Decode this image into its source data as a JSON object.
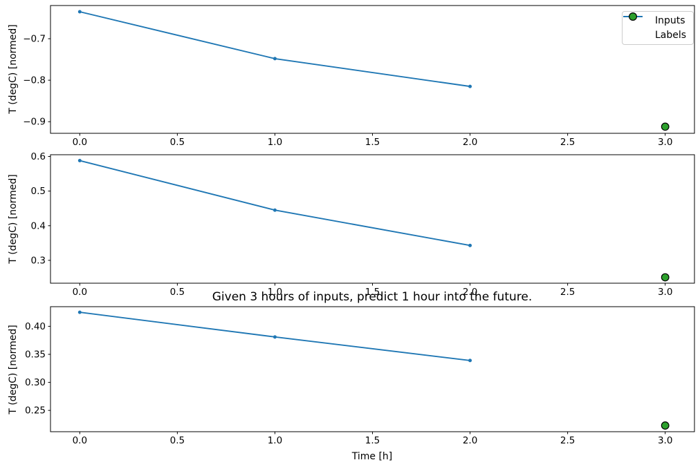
{
  "figure": {
    "title": "Given 3 hours of inputs, predict 1 hour into the future.",
    "xlabel": "Time [h]",
    "ylabel": "T (degC) [normed]",
    "background": "#ffffff"
  },
  "legend": {
    "position": "upper-right-of-first-subplot",
    "items": [
      {
        "label": "Inputs",
        "marker": "line-with-dot",
        "color": "#1f77b4"
      },
      {
        "label": "Labels",
        "marker": "circle",
        "fill": "#2ca02c",
        "edge": "#000000"
      }
    ]
  },
  "colors": {
    "inputs_line": "#1f77b4",
    "labels_fill": "#2ca02c",
    "labels_edge": "#000000",
    "spine": "#000000",
    "tick_text": "#000000"
  },
  "chart_data": [
    {
      "type": "line",
      "title": "",
      "ylabel": "T (degC) [normed]",
      "legend_entries": [
        "Inputs",
        "Labels"
      ],
      "series": [
        {
          "name": "Inputs",
          "x": [
            0,
            1,
            2
          ],
          "y": [
            -0.635,
            -0.748,
            -0.815
          ]
        }
      ],
      "scatter": [
        {
          "name": "Labels",
          "x": [
            3
          ],
          "y": [
            -0.912
          ]
        }
      ],
      "xlim": [
        -0.15,
        3.15
      ],
      "ylim": [
        -0.928,
        -0.62
      ],
      "xticks": {
        "values": [
          0,
          0.5,
          1,
          1.5,
          2,
          2.5,
          3
        ],
        "labels": [
          "0.0",
          "0.5",
          "1.0",
          "1.5",
          "2.0",
          "2.5",
          "3.0"
        ]
      },
      "yticks": {
        "values": [
          -0.7,
          -0.8,
          -0.9
        ],
        "labels": [
          "−0.7",
          "−0.8",
          "−0.9"
        ]
      },
      "grid": false
    },
    {
      "type": "line",
      "title": "",
      "ylabel": "T (degC) [normed]",
      "legend_entries": [],
      "series": [
        {
          "name": "Inputs",
          "x": [
            0,
            1,
            2
          ],
          "y": [
            0.588,
            0.445,
            0.343
          ]
        }
      ],
      "scatter": [
        {
          "name": "Labels",
          "x": [
            3
          ],
          "y": [
            0.251
          ]
        }
      ],
      "xlim": [
        -0.15,
        3.15
      ],
      "ylim": [
        0.234,
        0.605
      ],
      "xticks": {
        "values": [
          0,
          0.5,
          1,
          1.5,
          2,
          2.5,
          3
        ],
        "labels": [
          "0.0",
          "0.5",
          "1.0",
          "1.5",
          "2.0",
          "2.5",
          "3.0"
        ]
      },
      "yticks": {
        "values": [
          0.3,
          0.4,
          0.5,
          0.6
        ],
        "labels": [
          "0.3",
          "0.4",
          "0.5",
          "0.6"
        ]
      },
      "grid": false
    },
    {
      "type": "line",
      "title": "Given 3 hours of inputs, predict 1 hour into the future.",
      "xlabel": "Time [h]",
      "ylabel": "T (degC) [normed]",
      "legend_entries": [],
      "series": [
        {
          "name": "Inputs",
          "x": [
            0,
            1,
            2
          ],
          "y": [
            0.425,
            0.381,
            0.339
          ]
        }
      ],
      "scatter": [
        {
          "name": "Labels",
          "x": [
            3
          ],
          "y": [
            0.223
          ]
        }
      ],
      "xlim": [
        -0.15,
        3.15
      ],
      "ylim": [
        0.212,
        0.435
      ],
      "xticks": {
        "values": [
          0,
          0.5,
          1,
          1.5,
          2,
          2.5,
          3
        ],
        "labels": [
          "0.0",
          "0.5",
          "1.0",
          "1.5",
          "2.0",
          "2.5",
          "3.0"
        ]
      },
      "yticks": {
        "values": [
          0.25,
          0.3,
          0.35,
          0.4
        ],
        "labels": [
          "0.25",
          "0.30",
          "0.35",
          "0.40"
        ]
      },
      "grid": false
    }
  ]
}
